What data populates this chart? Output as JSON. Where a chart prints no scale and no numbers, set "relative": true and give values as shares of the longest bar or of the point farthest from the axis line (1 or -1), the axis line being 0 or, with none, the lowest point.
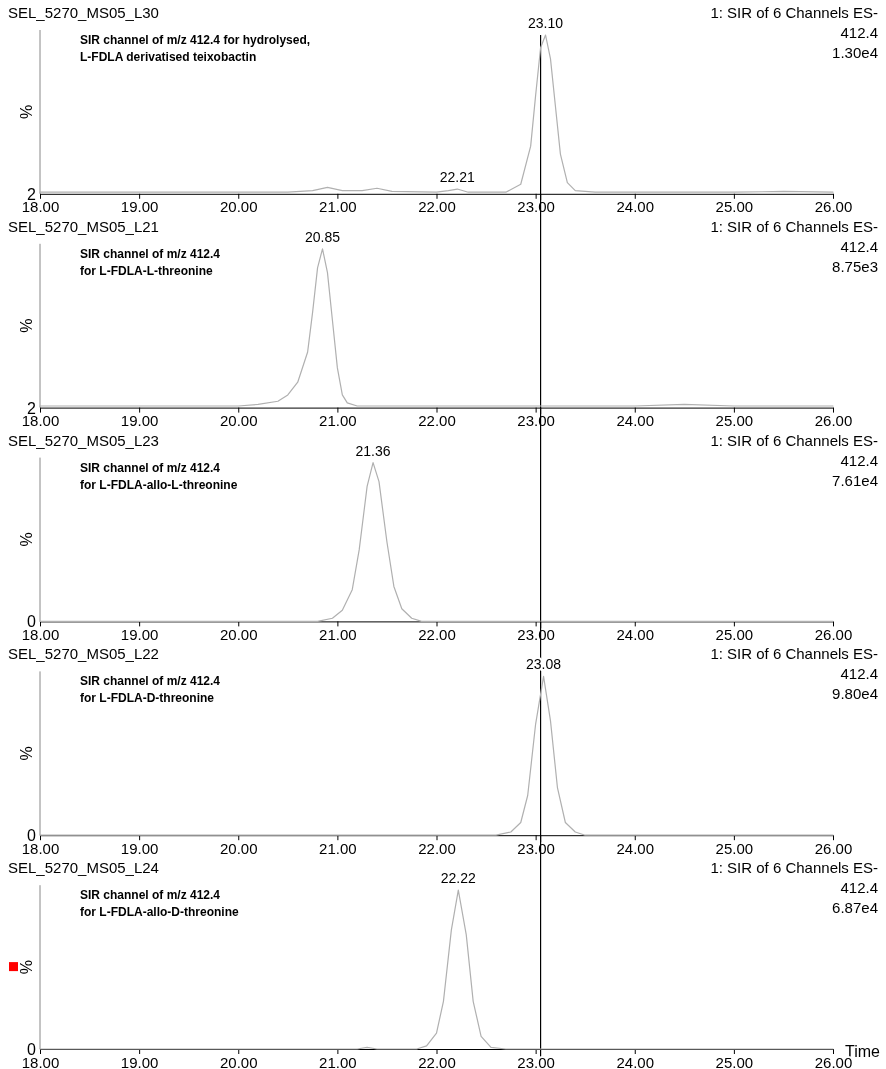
{
  "chart_data": [
    {
      "type": "line",
      "title": "SEL_5270_MS05_L30",
      "subtitle": "1: SIR of 6 Channels ES-",
      "ylabel": "%",
      "relative": true,
      "xlim": [
        18,
        26
      ],
      "xticks": [
        {
          "value": 18,
          "label": "18.00"
        },
        {
          "value": 19,
          "label": "19.00"
        },
        {
          "value": 20,
          "label": "20.00"
        },
        {
          "value": 21,
          "label": "21.00"
        },
        {
          "value": 22,
          "label": "22.00"
        },
        {
          "value": 23,
          "label": "23.00"
        },
        {
          "value": 24,
          "label": "24.00"
        },
        {
          "value": 25,
          "label": "25.00"
        },
        {
          "value": 26,
          "label": "26.00"
        }
      ],
      "grid": false,
      "marker": "none",
      "line_style": "solid",
      "ref_lines": [
        {
          "axis": "x",
          "value": 23.05,
          "color": "#000000"
        }
      ],
      "annotations": [
        "SIR channel of m/z 412.4 for hydrolysed,\nL-FDLA derivatised teixobactin",
        "412.4",
        "1.30e4",
        "2",
        {
          "text": "23.10",
          "x": 23.1,
          "y": 1
        },
        {
          "text": "22.21",
          "x": 22.21,
          "y": 0.03
        }
      ],
      "series": [
        {
          "color": "#b0b0b0",
          "x": [
            18,
            18.5,
            19,
            19.5,
            20,
            20.5,
            20.75,
            20.9,
            21.05,
            21.25,
            21.4,
            21.55,
            22.0,
            22.12,
            22.21,
            22.32,
            22.7,
            22.85,
            22.95,
            23.0,
            23.05,
            23.1,
            23.15,
            23.2,
            23.25,
            23.32,
            23.4,
            23.6,
            24,
            25,
            25.5,
            26
          ],
          "values": [
            0.01,
            0.01,
            0.01,
            0.01,
            0.01,
            0.01,
            0.02,
            0.04,
            0.02,
            0.02,
            0.035,
            0.015,
            0.01,
            0.02,
            0.03,
            0.01,
            0.01,
            0.06,
            0.3,
            0.62,
            0.92,
            1,
            0.85,
            0.55,
            0.25,
            0.07,
            0.02,
            0.01,
            0.01,
            0.01,
            0.015,
            0.01
          ]
        }
      ]
    },
    {
      "type": "line",
      "title": "SEL_5270_MS05_L21",
      "subtitle": "1: SIR of 6 Channels ES-",
      "ylabel": "%",
      "relative": true,
      "xlim": [
        18,
        26
      ],
      "xticks": [
        {
          "value": 18,
          "label": "18.00"
        },
        {
          "value": 19,
          "label": "19.00"
        },
        {
          "value": 20,
          "label": "20.00"
        },
        {
          "value": 21,
          "label": "21.00"
        },
        {
          "value": 22,
          "label": "22.00"
        },
        {
          "value": 23,
          "label": "23.00"
        },
        {
          "value": 24,
          "label": "24.00"
        },
        {
          "value": 25,
          "label": "25.00"
        },
        {
          "value": 26,
          "label": "26.00"
        }
      ],
      "grid": false,
      "marker": "none",
      "line_style": "solid",
      "ref_lines": [
        {
          "axis": "x",
          "value": 23.05,
          "color": "#000000"
        }
      ],
      "annotations": [
        "SIR channel of m/z 412.4\nfor L-FDLA-L-threonine",
        "412.4",
        "8.75e3",
        "2",
        {
          "text": "20.85",
          "x": 20.85,
          "y": 1
        }
      ],
      "series": [
        {
          "color": "#b0b0b0",
          "x": [
            18,
            18.5,
            19,
            19.5,
            20,
            20.2,
            20.4,
            20.5,
            20.6,
            20.7,
            20.75,
            20.8,
            20.85,
            20.9,
            20.95,
            21.0,
            21.05,
            21.1,
            21.2,
            21.5,
            22,
            23,
            24,
            24.5,
            25,
            25.5,
            26
          ],
          "values": [
            0.01,
            0.01,
            0.01,
            0.01,
            0.01,
            0.02,
            0.04,
            0.08,
            0.16,
            0.35,
            0.6,
            0.88,
            1,
            0.85,
            0.55,
            0.25,
            0.08,
            0.03,
            0.01,
            0.01,
            0.01,
            0.01,
            0.01,
            0.02,
            0.01,
            0.01,
            0.01
          ]
        }
      ]
    },
    {
      "type": "line",
      "title": "SEL_5270_MS05_L23",
      "subtitle": "1: SIR of 6 Channels ES-",
      "ylabel": "%",
      "relative": true,
      "xlim": [
        18,
        26
      ],
      "xticks": [
        {
          "value": 18,
          "label": "18.00"
        },
        {
          "value": 19,
          "label": "19.00"
        },
        {
          "value": 20,
          "label": "20.00"
        },
        {
          "value": 21,
          "label": "21.00"
        },
        {
          "value": 22,
          "label": "22.00"
        },
        {
          "value": 23,
          "label": "23.00"
        },
        {
          "value": 24,
          "label": "24.00"
        },
        {
          "value": 25,
          "label": "25.00"
        },
        {
          "value": 26,
          "label": "26.00"
        }
      ],
      "grid": false,
      "marker": "none",
      "line_style": "solid",
      "ref_lines": [
        {
          "axis": "x",
          "value": 23.05,
          "color": "#000000"
        }
      ],
      "annotations": [
        "SIR channel of m/z 412.4\nfor L-FDLA-allo-L-threonine",
        "412.4",
        "7.61e4",
        "0",
        {
          "text": "21.36",
          "x": 21.36,
          "y": 1
        }
      ],
      "series": [
        {
          "color": "#b0b0b0",
          "x": [
            18,
            20,
            20.8,
            20.95,
            21.05,
            21.15,
            21.22,
            21.3,
            21.36,
            21.42,
            21.5,
            21.57,
            21.65,
            21.75,
            21.85,
            22,
            24,
            26
          ],
          "values": [
            0,
            0,
            0,
            0.02,
            0.07,
            0.2,
            0.45,
            0.85,
            1,
            0.88,
            0.5,
            0.22,
            0.08,
            0.02,
            0,
            0,
            0,
            0
          ]
        }
      ]
    },
    {
      "type": "line",
      "title": "SEL_5270_MS05_L22",
      "subtitle": "1: SIR of 6 Channels ES-",
      "ylabel": "%",
      "relative": true,
      "xlim": [
        18,
        26
      ],
      "xticks": [
        {
          "value": 18,
          "label": "18.00"
        },
        {
          "value": 19,
          "label": "19.00"
        },
        {
          "value": 20,
          "label": "20.00"
        },
        {
          "value": 21,
          "label": "21.00"
        },
        {
          "value": 22,
          "label": "22.00"
        },
        {
          "value": 23,
          "label": "23.00"
        },
        {
          "value": 24,
          "label": "24.00"
        },
        {
          "value": 25,
          "label": "25.00"
        },
        {
          "value": 26,
          "label": "26.00"
        }
      ],
      "grid": false,
      "marker": "none",
      "line_style": "solid",
      "ref_lines": [
        {
          "axis": "x",
          "value": 23.05,
          "color": "#000000"
        }
      ],
      "annotations": [
        "SIR channel of m/z 412.4\nfor L-FDLA-D-threonine",
        "412.4",
        "9.80e4",
        "0",
        {
          "text": "23.08",
          "x": 23.08,
          "y": 1
        }
      ],
      "series": [
        {
          "color": "#b0b0b0",
          "x": [
            18,
            20,
            22.6,
            22.75,
            22.85,
            22.92,
            23.0,
            23.08,
            23.15,
            23.22,
            23.3,
            23.4,
            23.5,
            24,
            26
          ],
          "values": [
            0,
            0,
            0,
            0.02,
            0.08,
            0.25,
            0.7,
            1,
            0.72,
            0.3,
            0.08,
            0.02,
            0,
            0,
            0
          ]
        }
      ]
    },
    {
      "type": "line",
      "title": "SEL_5270_MS05_L24",
      "subtitle": "1: SIR of 6 Channels ES-",
      "ylabel": "%",
      "xlabel": "Time",
      "relative": true,
      "xlim": [
        18,
        26
      ],
      "xticks": [
        {
          "value": 18,
          "label": "18.00"
        },
        {
          "value": 19,
          "label": "19.00"
        },
        {
          "value": 20,
          "label": "20.00"
        },
        {
          "value": 21,
          "label": "21.00"
        },
        {
          "value": 22,
          "label": "22.00"
        },
        {
          "value": 23,
          "label": "23.00"
        },
        {
          "value": 24,
          "label": "24.00"
        },
        {
          "value": 25,
          "label": "25.00"
        },
        {
          "value": 26,
          "label": "26.00"
        }
      ],
      "grid": false,
      "marker": "none",
      "line_style": "solid",
      "ref_lines": [
        {
          "axis": "x",
          "value": 23.05,
          "color": "#000000"
        }
      ],
      "annotations": [
        "SIR channel of m/z 412.4\nfor L-FDLA-allo-D-threonine",
        "412.4",
        "6.87e4",
        "0",
        {
          "text": "22.22",
          "x": 22.22,
          "y": 1
        }
      ],
      "series": [
        {
          "color": "#b0b0b0",
          "x": [
            18,
            20,
            21.2,
            21.3,
            21.4,
            21.8,
            21.9,
            22.0,
            22.07,
            22.15,
            22.22,
            22.3,
            22.37,
            22.45,
            22.55,
            22.7,
            24,
            26
          ],
          "values": [
            0,
            0,
            0,
            0.01,
            0,
            0,
            0.02,
            0.1,
            0.3,
            0.75,
            1,
            0.72,
            0.3,
            0.08,
            0.01,
            0,
            0,
            0
          ]
        }
      ]
    }
  ]
}
